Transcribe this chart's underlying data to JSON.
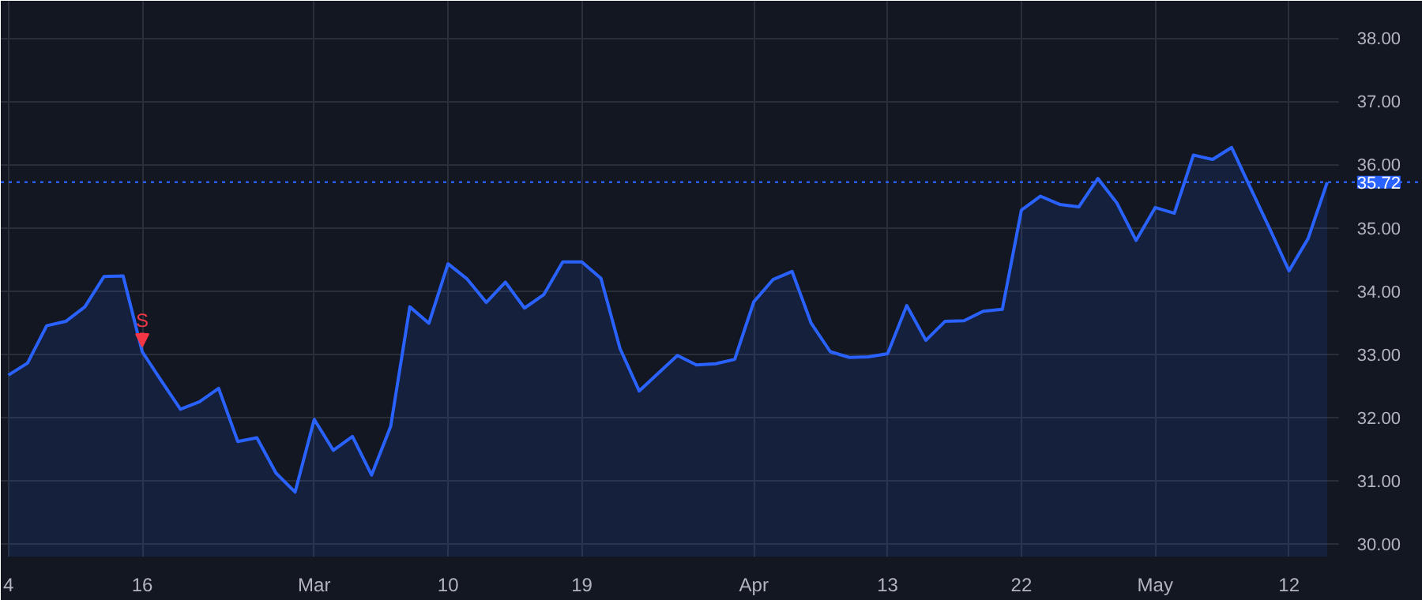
{
  "chart_data": {
    "type": "area",
    "categories": [
      "4",
      null,
      null,
      null,
      null,
      null,
      null,
      "16",
      null,
      null,
      null,
      null,
      null,
      null,
      null,
      null,
      "Mar",
      null,
      null,
      null,
      null,
      null,
      null,
      "10",
      null,
      null,
      null,
      null,
      null,
      null,
      "19",
      null,
      null,
      null,
      null,
      null,
      null,
      null,
      null,
      "Apr",
      null,
      null,
      null,
      null,
      null,
      null,
      "13",
      null,
      null,
      null,
      null,
      null,
      null,
      "22",
      null,
      null,
      null,
      null,
      null,
      null,
      "May",
      null,
      null,
      null,
      null,
      null,
      null,
      "12",
      null,
      null
    ],
    "series": [
      {
        "color": "#2962ff",
        "values": [
          32.67,
          32.86,
          33.45,
          33.52,
          33.75,
          34.23,
          34.24,
          33.04,
          32.58,
          32.13,
          32.25,
          32.46,
          31.62,
          31.68,
          31.12,
          30.82,
          31.97,
          31.48,
          31.7,
          31.09,
          31.86,
          33.75,
          33.49,
          34.43,
          34.19,
          33.82,
          34.14,
          33.73,
          33.94,
          34.46,
          34.46,
          34.2,
          33.09,
          32.42,
          32.7,
          32.98,
          32.83,
          32.85,
          32.92,
          33.83,
          34.18,
          34.31,
          33.49,
          33.04,
          32.95,
          32.96,
          33.01,
          33.77,
          33.22,
          33.52,
          33.53,
          33.68,
          33.71,
          35.28,
          35.5,
          35.37,
          35.33,
          35.78,
          35.39,
          34.8,
          35.32,
          35.23,
          36.15,
          36.08,
          36.27,
          35.62,
          34.98,
          34.32,
          34.83,
          35.72
        ]
      }
    ],
    "ylim": [
      29.8,
      38.59
    ],
    "yticks": [
      {
        "value": 30,
        "label": "30.00"
      },
      {
        "value": 31,
        "label": "31.00"
      },
      {
        "value": 32,
        "label": "32.00"
      },
      {
        "value": 33,
        "label": "33.00"
      },
      {
        "value": 34,
        "label": "34.00"
      },
      {
        "value": 35,
        "label": "35.00"
      },
      {
        "value": 36,
        "label": "36.00"
      },
      {
        "value": 37,
        "label": "37.00"
      },
      {
        "value": 38,
        "label": "38.00"
      }
    ],
    "grid": true,
    "ref_lines": [
      {
        "axis": "y",
        "value": 35.72,
        "label": "35.72",
        "color": "#2962ff",
        "line_style": "dotted"
      }
    ],
    "annotations": [
      {
        "text": "S",
        "x": "16",
        "y": 33.04
      }
    ]
  }
}
